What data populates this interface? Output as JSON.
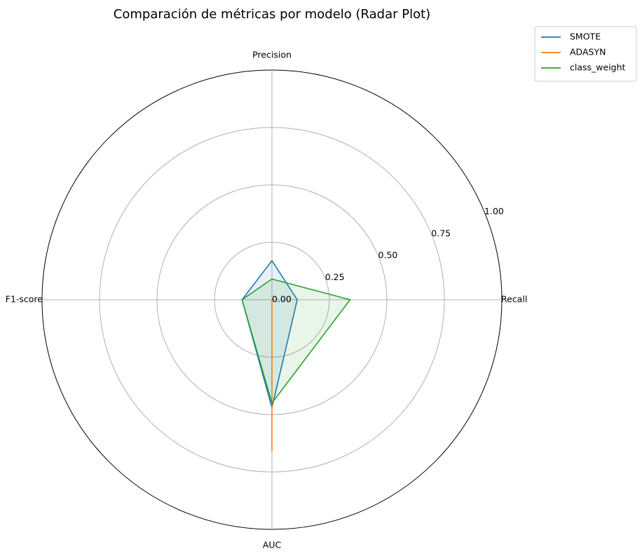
{
  "chart_data": {
    "type": "radar",
    "title": "Comparación de métricas por modelo (Radar Plot)",
    "axes": [
      "Recall",
      "Precision",
      "F1-score",
      "AUC"
    ],
    "rlim": [
      0,
      1.0
    ],
    "rticks": [
      0.0,
      0.25,
      0.5,
      0.75,
      1.0
    ],
    "rtick_labels": [
      "0.00",
      "0.25",
      "0.50",
      "0.75",
      "1.00"
    ],
    "grid": true,
    "legend_position": "top-right outside",
    "series": [
      {
        "name": "SMOTE",
        "color": "#1f77b4",
        "values": [
          0.11,
          0.17,
          0.13,
          0.47
        ]
      },
      {
        "name": "ADASYN",
        "color": "#ff7f0e",
        "values": [
          0.0,
          0.0,
          0.0,
          0.66
        ]
      },
      {
        "name": "class_weight",
        "color": "#2ca02c",
        "values": [
          0.34,
          0.09,
          0.13,
          0.45
        ]
      }
    ]
  }
}
